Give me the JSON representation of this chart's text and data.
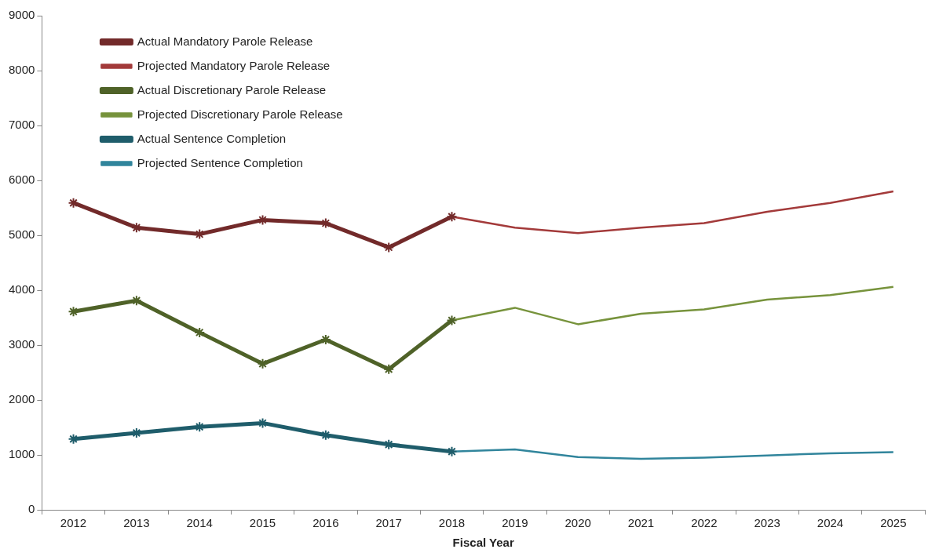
{
  "chart_data": {
    "type": "line",
    "xlabel": "Fiscal Year",
    "categories": [
      "2012",
      "2013",
      "2014",
      "2015",
      "2016",
      "2017",
      "2018",
      "2019",
      "2020",
      "2021",
      "2022",
      "2023",
      "2024",
      "2025"
    ],
    "ylim": [
      0,
      9000
    ],
    "yticks": [
      0,
      1000,
      2000,
      3000,
      4000,
      5000,
      6000,
      7000,
      8000,
      9000
    ],
    "legend": "top left",
    "series": [
      {
        "name": "Actual Mandatory Parole Release",
        "color": "#722a2a",
        "marker": "cross",
        "values": [
          5590,
          5140,
          5020,
          5280,
          5220,
          4780,
          5340,
          null,
          null,
          null,
          null,
          null,
          null,
          null
        ]
      },
      {
        "name": "Projected Mandatory Parole Release",
        "color": "#a33a3a",
        "marker": "none",
        "values": [
          null,
          null,
          null,
          null,
          null,
          null,
          5340,
          5140,
          5040,
          5140,
          5220,
          5430,
          5590,
          5800
        ]
      },
      {
        "name": "Actual Discretionary Parole Release",
        "color": "#4f6228",
        "marker": "cross",
        "values": [
          3610,
          3810,
          3230,
          2660,
          3100,
          2560,
          3450,
          null,
          null,
          null,
          null,
          null,
          null,
          null
        ]
      },
      {
        "name": "Projected Discretionary Parole Release",
        "color": "#77933c",
        "marker": "none",
        "values": [
          null,
          null,
          null,
          null,
          null,
          null,
          3450,
          3680,
          3380,
          3570,
          3650,
          3830,
          3910,
          4060
        ]
      },
      {
        "name": "Actual Sentence Completion",
        "color": "#1f5d6b",
        "marker": "cross",
        "values": [
          1290,
          1400,
          1510,
          1580,
          1360,
          1190,
          1060,
          null,
          null,
          null,
          null,
          null,
          null,
          null
        ]
      },
      {
        "name": "Projected Sentence Completion",
        "color": "#31859c",
        "marker": "none",
        "values": [
          null,
          null,
          null,
          null,
          null,
          null,
          1060,
          1100,
          960,
          930,
          950,
          990,
          1030,
          1050
        ]
      }
    ]
  }
}
